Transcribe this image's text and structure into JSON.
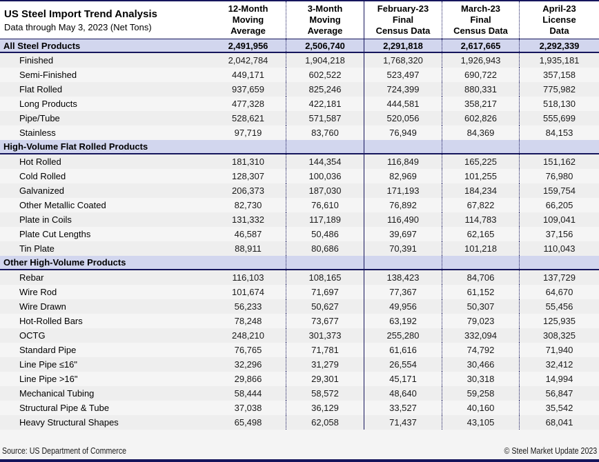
{
  "header": {
    "title": "US Steel Import Trend Analysis",
    "subtitle": "Data through May 3, 2023 (Net Tons)",
    "columns": [
      "12-Month\nMoving\nAverage",
      "3-Month\nMoving\nAverage",
      "February-23\nFinal\nCensus Data",
      "March-23\nFinal\nCensus Data",
      "April-23\nLicense\nData"
    ]
  },
  "table": {
    "rows": [
      {
        "type": "total",
        "label": "All Steel Products",
        "values": [
          "2,491,956",
          "2,506,740",
          "2,291,818",
          "2,617,665",
          "2,292,339"
        ]
      },
      {
        "type": "data",
        "label": "Finished",
        "values": [
          "2,042,784",
          "1,904,218",
          "1,768,320",
          "1,926,943",
          "1,935,181"
        ]
      },
      {
        "type": "data",
        "label": "Semi-Finished",
        "values": [
          "449,171",
          "602,522",
          "523,497",
          "690,722",
          "357,158"
        ]
      },
      {
        "type": "data",
        "label": "Flat Rolled",
        "values": [
          "937,659",
          "825,246",
          "724,399",
          "880,331",
          "775,982"
        ]
      },
      {
        "type": "data",
        "label": "Long Products",
        "values": [
          "477,328",
          "422,181",
          "444,581",
          "358,217",
          "518,130"
        ]
      },
      {
        "type": "data",
        "label": "Pipe/Tube",
        "values": [
          "528,621",
          "571,587",
          "520,056",
          "602,826",
          "555,699"
        ]
      },
      {
        "type": "data",
        "label": "Stainless",
        "values": [
          "97,719",
          "83,760",
          "76,949",
          "84,369",
          "84,153"
        ]
      },
      {
        "type": "section",
        "label": "High-Volume Flat Rolled Products",
        "values": [
          "",
          "",
          "",
          "",
          ""
        ]
      },
      {
        "type": "data",
        "label": "Hot Rolled",
        "values": [
          "181,310",
          "144,354",
          "116,849",
          "165,225",
          "151,162"
        ]
      },
      {
        "type": "data",
        "label": "Cold Rolled",
        "values": [
          "128,307",
          "100,036",
          "82,969",
          "101,255",
          "76,980"
        ]
      },
      {
        "type": "data",
        "label": "Galvanized",
        "values": [
          "206,373",
          "187,030",
          "171,193",
          "184,234",
          "159,754"
        ]
      },
      {
        "type": "data",
        "label": "Other Metallic Coated",
        "values": [
          "82,730",
          "76,610",
          "76,892",
          "67,822",
          "66,205"
        ]
      },
      {
        "type": "data",
        "label": "Plate in Coils",
        "values": [
          "131,332",
          "117,189",
          "116,490",
          "114,783",
          "109,041"
        ]
      },
      {
        "type": "data",
        "label": "Plate Cut Lengths",
        "values": [
          "46,587",
          "50,486",
          "39,697",
          "62,165",
          "37,156"
        ]
      },
      {
        "type": "data",
        "label": "Tin Plate",
        "values": [
          "88,911",
          "80,686",
          "70,391",
          "101,218",
          "110,043"
        ]
      },
      {
        "type": "section",
        "label": "Other High-Volume Products",
        "values": [
          "",
          "",
          "",
          "",
          ""
        ]
      },
      {
        "type": "data",
        "label": "Rebar",
        "values": [
          "116,103",
          "108,165",
          "138,423",
          "84,706",
          "137,729"
        ]
      },
      {
        "type": "data",
        "label": "Wire Rod",
        "values": [
          "101,674",
          "71,697",
          "77,367",
          "61,152",
          "64,670"
        ]
      },
      {
        "type": "data",
        "label": "Wire Drawn",
        "values": [
          "56,233",
          "50,627",
          "49,956",
          "50,307",
          "55,456"
        ]
      },
      {
        "type": "data",
        "label": "Hot-Rolled Bars",
        "values": [
          "78,248",
          "73,677",
          "63,192",
          "79,023",
          "125,935"
        ]
      },
      {
        "type": "data",
        "label": "OCTG",
        "values": [
          "248,210",
          "301,373",
          "255,280",
          "332,094",
          "308,325"
        ]
      },
      {
        "type": "data",
        "label": "Standard Pipe",
        "values": [
          "76,765",
          "71,781",
          "61,616",
          "74,792",
          "71,940"
        ]
      },
      {
        "type": "data",
        "label": "Line Pipe ≤16\"",
        "values": [
          "32,296",
          "31,279",
          "26,554",
          "30,466",
          "32,412"
        ]
      },
      {
        "type": "data",
        "label": "Line Pipe >16\"",
        "values": [
          "29,866",
          "29,301",
          "45,171",
          "30,318",
          "14,994"
        ]
      },
      {
        "type": "data",
        "label": "Mechanical Tubing",
        "values": [
          "58,444",
          "58,572",
          "48,640",
          "59,258",
          "56,847"
        ]
      },
      {
        "type": "data",
        "label": "Structural Pipe & Tube",
        "values": [
          "37,038",
          "36,129",
          "33,527",
          "40,160",
          "35,542"
        ]
      },
      {
        "type": "data",
        "label": "Heavy Structural Shapes",
        "values": [
          "65,498",
          "62,058",
          "71,437",
          "43,105",
          "68,041"
        ]
      }
    ]
  },
  "footer": {
    "source": "Source: US Department of Commerce",
    "copyright": "© Steel Market Update 2023"
  },
  "colors": {
    "navy": "#15155c",
    "lavender": "#d2d6ee",
    "stripe_dark": "#eeeeee",
    "stripe_light": "#f5f5f5"
  }
}
